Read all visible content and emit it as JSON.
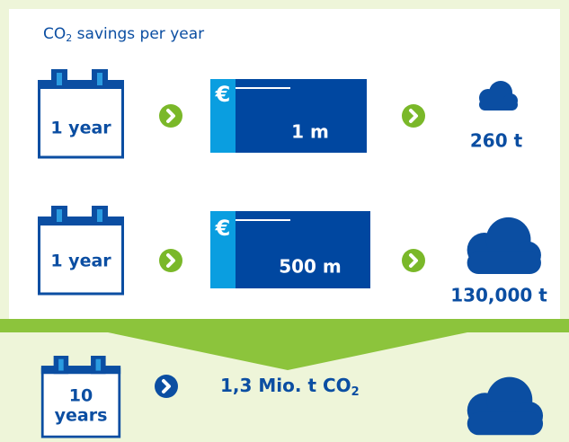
{
  "title": [
    "CO",
    "2",
    " savings per year"
  ],
  "currency": "€",
  "rows": [
    {
      "period": "1 year",
      "amount": "1 m",
      "result": "260 t"
    },
    {
      "period": "1 year",
      "amount": "500 m",
      "result": "130,000 t"
    }
  ],
  "summary": {
    "period_lines": [
      "10",
      "years"
    ],
    "result": [
      "1,3 Mio. t CO",
      "2"
    ]
  }
}
